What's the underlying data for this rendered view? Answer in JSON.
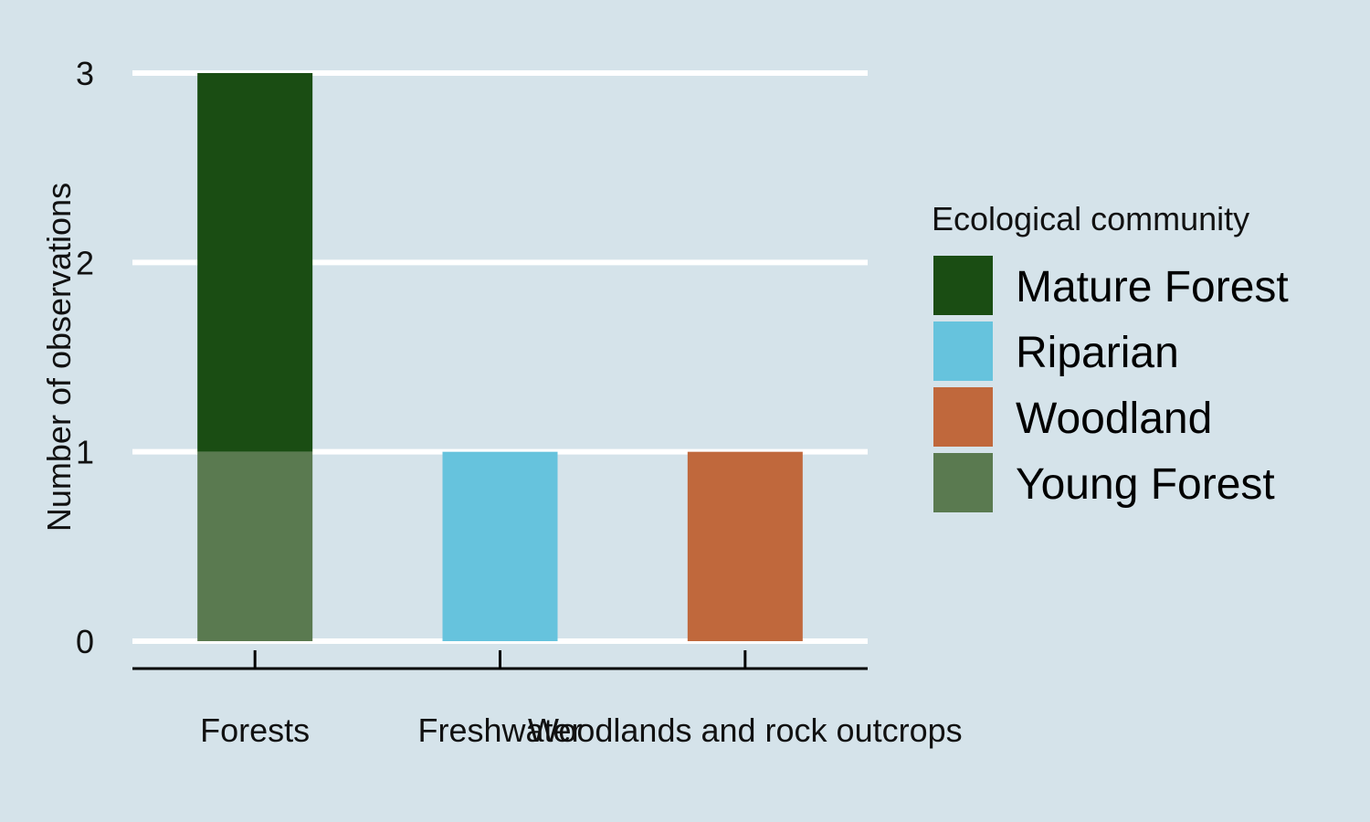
{
  "chart_data": {
    "type": "bar",
    "stacked": true,
    "categories": [
      "Forests",
      "Freshwater",
      "Woodlands and rock outcrops"
    ],
    "series": [
      {
        "name": "Mature Forest",
        "color": "#1a4d13",
        "values": [
          2,
          0,
          0
        ]
      },
      {
        "name": "Riparian",
        "color": "#66c3dd",
        "values": [
          0,
          1,
          0
        ]
      },
      {
        "name": "Woodland",
        "color": "#c0683c",
        "values": [
          0,
          0,
          1
        ]
      },
      {
        "name": "Young Forest",
        "color": "#5a7a50",
        "values": [
          1,
          0,
          0
        ]
      }
    ],
    "stack_order_bottom_to_top": [
      "Young Forest",
      "Woodland",
      "Riparian",
      "Mature Forest"
    ],
    "ylabel": "Number of observations",
    "xlabel": "",
    "ylim": [
      0,
      3
    ],
    "yticks": [
      0,
      1,
      2,
      3
    ],
    "grid": "horizontal",
    "legend": {
      "title": "Ecological community",
      "placement": "right"
    },
    "colors": {
      "background": "#d5e3ea",
      "gridline": "#ffffff",
      "axis": "#000000"
    }
  }
}
